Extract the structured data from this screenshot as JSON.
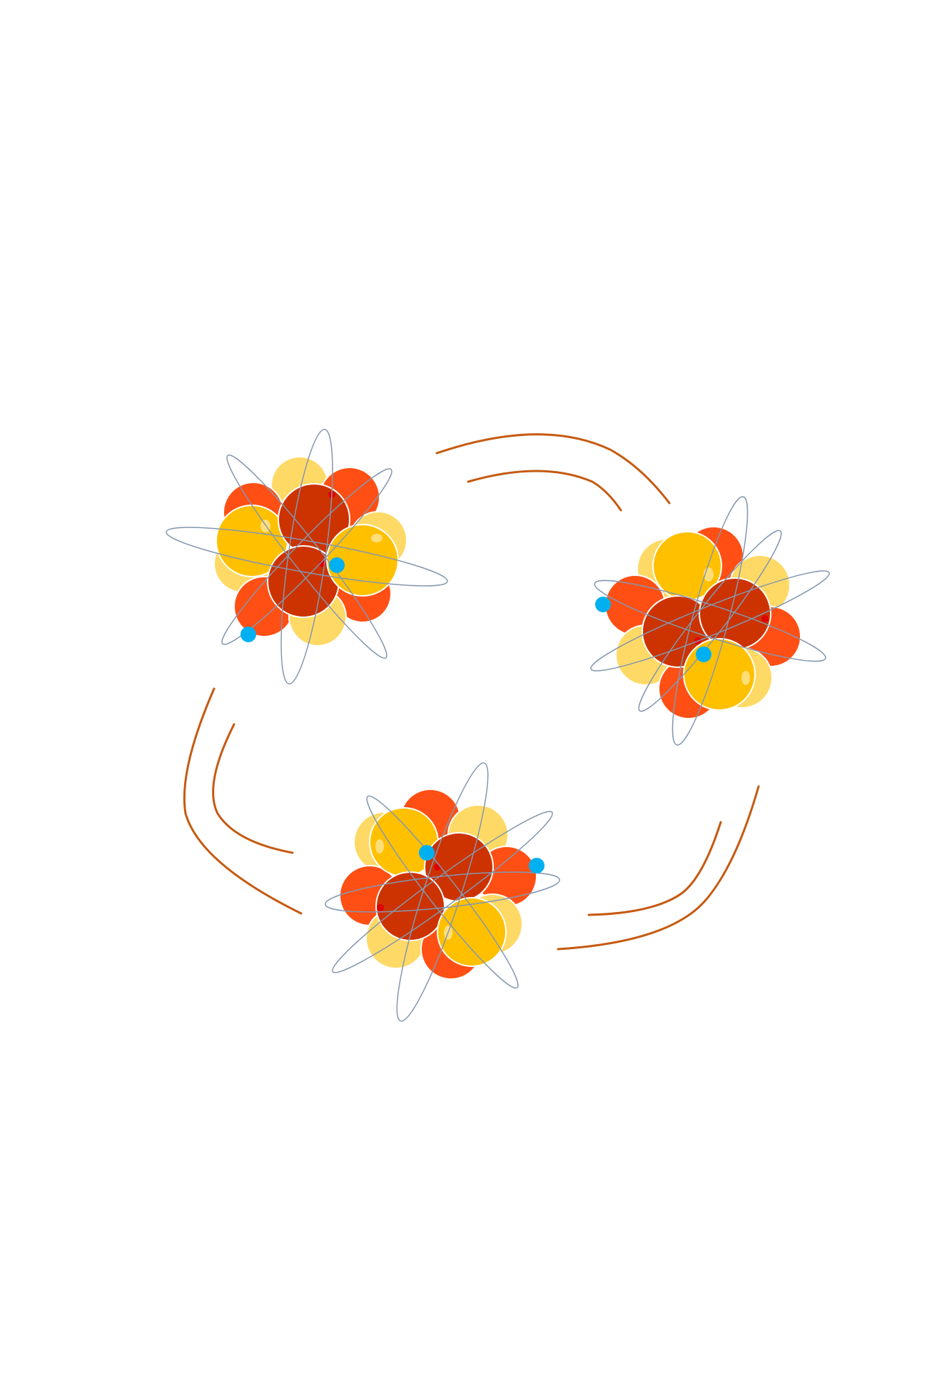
{
  "diagram": {
    "colors": {
      "background": "#ffffff",
      "proton_dark": "#CC3300",
      "proton_light": "#FF4F14",
      "neutron_deep": "#FFC000",
      "neutron_pale": "#FFD966",
      "electron": "#00B0F0",
      "orbit": "#8497B0",
      "arrow": "#C55A11",
      "highlight": "#FFF2CC",
      "marker": "#E00000"
    },
    "atoms": [
      {
        "name": "atom-top-left",
        "electron_count": 2
      },
      {
        "name": "atom-right",
        "electron_count": 2
      },
      {
        "name": "atom-bottom",
        "electron_count": 2
      }
    ],
    "arrows": [
      {
        "name": "arrow-top"
      },
      {
        "name": "arrow-right"
      },
      {
        "name": "arrow-left"
      }
    ]
  }
}
